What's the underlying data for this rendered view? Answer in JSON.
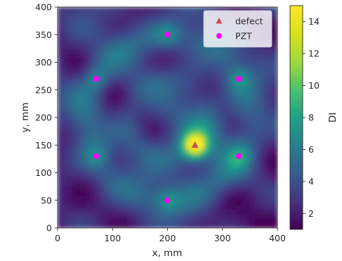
{
  "chart_data": {
    "type": "heatmap",
    "title": "",
    "xlabel": "x, mm",
    "ylabel": "y, mm",
    "xlim": [
      0,
      400
    ],
    "ylim": [
      0,
      400
    ],
    "x_ticks": [
      "0",
      "100",
      "200",
      "300",
      "400"
    ],
    "y_ticks": [
      "0",
      "50",
      "100",
      "150",
      "200",
      "250",
      "300",
      "350",
      "400"
    ],
    "colormap": "viridis",
    "colorbar": {
      "label": "DI",
      "range": [
        1,
        15
      ],
      "ticks": [
        "2",
        "4",
        "6",
        "8",
        "10",
        "12",
        "14"
      ]
    },
    "grid": false,
    "legend": {
      "placement": "top-right",
      "entries": [
        "defect",
        "PZT"
      ]
    },
    "series": [
      {
        "name": "defect",
        "marker": "triangle",
        "color": "#c44e52",
        "points": [
          [
            250,
            150
          ]
        ]
      },
      {
        "name": "PZT",
        "marker": "circle",
        "color": "#ff00ff",
        "points": [
          [
            200,
            350
          ],
          [
            70,
            270
          ],
          [
            330,
            270
          ],
          [
            70,
            130
          ],
          [
            330,
            130
          ],
          [
            200,
            50
          ]
        ]
      }
    ],
    "peak": {
      "x": 250,
      "y": 150,
      "value": 15
    }
  }
}
